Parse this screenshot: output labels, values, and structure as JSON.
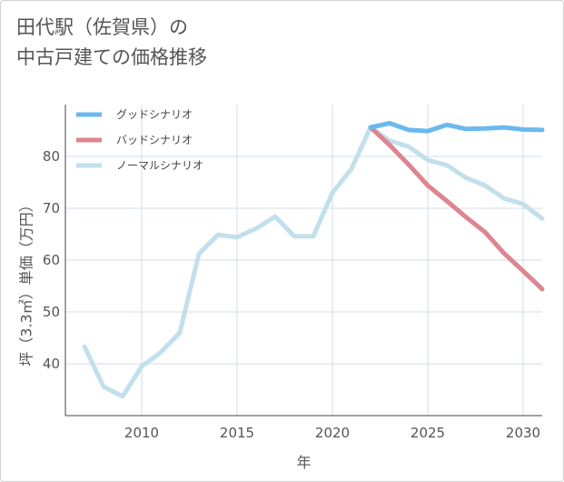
{
  "title": {
    "line1": "田代駅（佐賀県）の",
    "line2": "中古戸建ての価格推移"
  },
  "chart_data": {
    "type": "line",
    "xlabel": "年",
    "ylabel": "坪（3.3㎡）単価（万円）",
    "xlim": [
      2006,
      2031
    ],
    "ylim": [
      30,
      90
    ],
    "xticks": [
      2010,
      2015,
      2020,
      2025,
      2030
    ],
    "yticks": [
      40,
      50,
      60,
      70,
      80
    ],
    "grid": true,
    "legend_position": "top-left",
    "series": [
      {
        "name": "グッドシナリオ",
        "color": "#6ab8ee",
        "x": [
          2022,
          2023,
          2024,
          2025,
          2026,
          2027,
          2028,
          2029,
          2030,
          2031
        ],
        "y": [
          85.6,
          86.4,
          85.1,
          84.9,
          86.1,
          85.3,
          85.4,
          85.6,
          85.2,
          85.1
        ]
      },
      {
        "name": "バッドシナリオ",
        "color": "#dd8590",
        "x": [
          2022,
          2023,
          2024,
          2025,
          2026,
          2027,
          2028,
          2029,
          2030,
          2031
        ],
        "y": [
          85.6,
          82.2,
          78.4,
          74.4,
          71.4,
          68.3,
          65.4,
          61.3,
          57.9,
          54.4
        ]
      },
      {
        "name": "ノーマルシナリオ",
        "color": "#c2dfec",
        "x": [
          2007,
          2008,
          2009,
          2010,
          2011,
          2012,
          2013,
          2014,
          2015,
          2016,
          2017,
          2018,
          2019,
          2020,
          2021,
          2022,
          2023,
          2024,
          2025,
          2026,
          2027,
          2028,
          2029,
          2030,
          2031
        ],
        "y": [
          43.3,
          35.6,
          33.7,
          39.5,
          42.2,
          46.0,
          61.2,
          64.9,
          64.4,
          66.1,
          68.4,
          64.6,
          64.6,
          73.0,
          77.6,
          85.6,
          83.0,
          81.9,
          79.3,
          78.3,
          75.9,
          74.4,
          71.9,
          70.8,
          68.0
        ]
      }
    ]
  }
}
